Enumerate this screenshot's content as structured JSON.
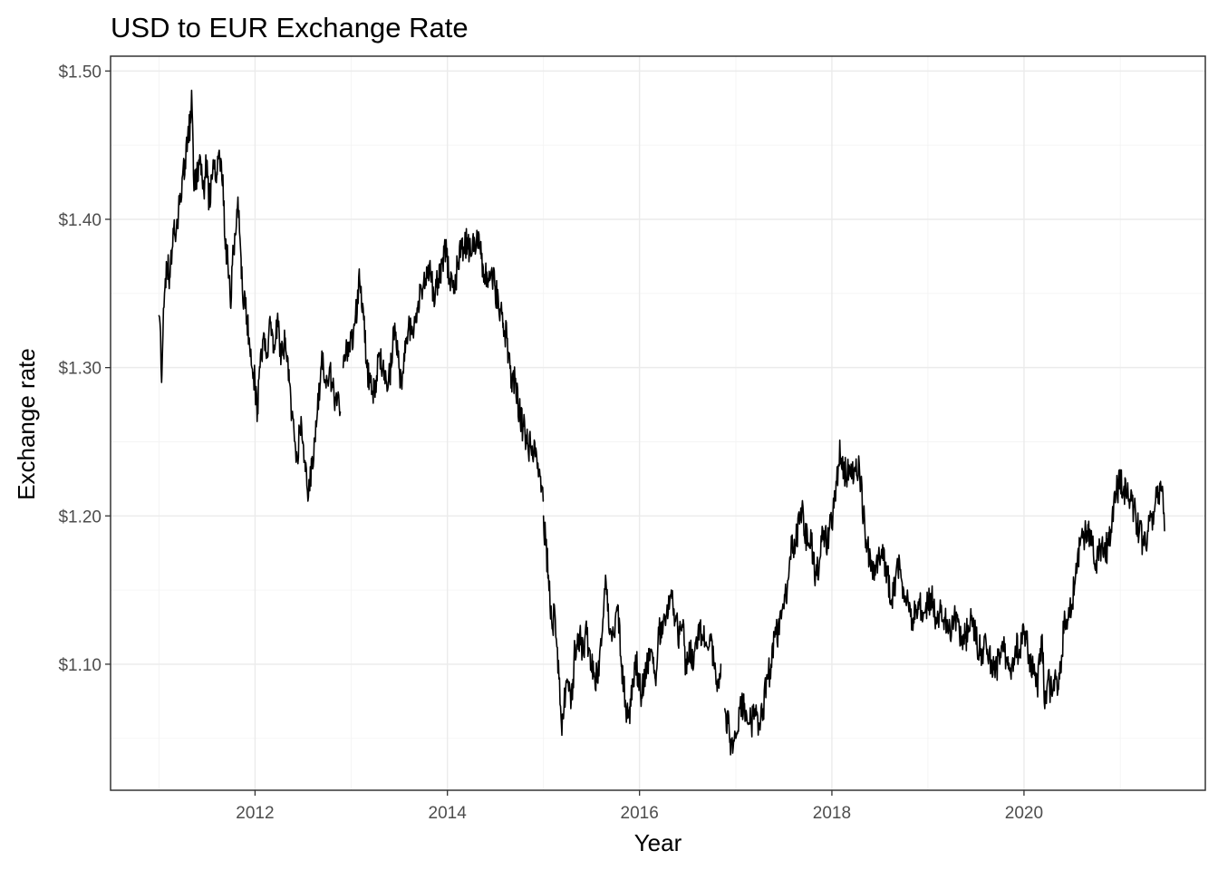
{
  "chart_data": {
    "type": "line",
    "title": "USD to EUR Exchange Rate",
    "xlabel": "Year",
    "ylabel": "Exchange rate",
    "xlim": [
      "2010-07-01",
      "2021-11-20"
    ],
    "ylim": [
      1.015,
      1.51
    ],
    "x_ticks": [
      {
        "value": "2012-01-01",
        "label": "2012"
      },
      {
        "value": "2014-01-01",
        "label": "2014"
      },
      {
        "value": "2016-01-01",
        "label": "2016"
      },
      {
        "value": "2018-01-01",
        "label": "2018"
      },
      {
        "value": "2020-01-01",
        "label": "2020"
      }
    ],
    "x_minor_ticks": [
      "2011-01-01",
      "2013-01-01",
      "2015-01-01",
      "2017-01-01",
      "2019-01-01",
      "2021-01-01"
    ],
    "y_ticks": [
      {
        "value": 1.1,
        "label": "$1.10"
      },
      {
        "value": 1.2,
        "label": "$1.20"
      },
      {
        "value": 1.3,
        "label": "$1.30"
      },
      {
        "value": 1.4,
        "label": "$1.40"
      },
      {
        "value": 1.5,
        "label": "$1.50"
      }
    ],
    "y_minor_ticks": [
      1.05,
      1.15,
      1.25,
      1.35,
      1.45
    ],
    "grid": true,
    "legend": "none",
    "series": [
      {
        "color": "#000000",
        "segments": [
          {
            "x": [
              "2011-01-01",
              "2011-01-05",
              "2011-01-09",
              "2011-01-12",
              "2011-01-18",
              "2011-01-25",
              "2011-02-01",
              "2011-02-10",
              "2011-02-20",
              "2011-03-01",
              "2011-03-10",
              "2011-03-20",
              "2011-04-01",
              "2011-04-10",
              "2011-04-20",
              "2011-05-01",
              "2011-05-05",
              "2011-05-12",
              "2011-05-20",
              "2011-06-01",
              "2011-06-10",
              "2011-06-20",
              "2011-07-01",
              "2011-07-10",
              "2011-07-20",
              "2011-08-01",
              "2011-08-10",
              "2011-08-20",
              "2011-09-01",
              "2011-09-10",
              "2011-09-20",
              "2011-10-01",
              "2011-10-10",
              "2011-10-20",
              "2011-10-28",
              "2011-11-10",
              "2011-11-25",
              "2011-12-10",
              "2011-12-20",
              "2012-01-01",
              "2012-01-10",
              "2012-01-20",
              "2012-02-01",
              "2012-02-15",
              "2012-02-28",
              "2012-03-10",
              "2012-03-25",
              "2012-04-10",
              "2012-04-25",
              "2012-05-10",
              "2012-05-20",
              "2012-06-01",
              "2012-06-10",
              "2012-06-20",
              "2012-07-01",
              "2012-07-10",
              "2012-07-20",
              "2012-07-25",
              "2012-08-05",
              "2012-08-15",
              "2012-08-25",
              "2012-09-05",
              "2012-09-15",
              "2012-09-25",
              "2012-10-10",
              "2012-10-20",
              "2012-11-01",
              "2012-11-10",
              "2012-11-20"
            ],
            "y": [
              1.335,
              1.33,
              1.3,
              1.295,
              1.34,
              1.36,
              1.37,
              1.36,
              1.38,
              1.39,
              1.4,
              1.41,
              1.43,
              1.44,
              1.455,
              1.465,
              1.487,
              1.43,
              1.42,
              1.44,
              1.43,
              1.42,
              1.44,
              1.41,
              1.43,
              1.44,
              1.43,
              1.44,
              1.43,
              1.38,
              1.37,
              1.34,
              1.38,
              1.39,
              1.415,
              1.36,
              1.34,
              1.32,
              1.3,
              1.29,
              1.27,
              1.3,
              1.32,
              1.31,
              1.33,
              1.31,
              1.33,
              1.31,
              1.32,
              1.29,
              1.27,
              1.25,
              1.24,
              1.26,
              1.25,
              1.23,
              1.21,
              1.22,
              1.24,
              1.25,
              1.27,
              1.29,
              1.31,
              1.29,
              1.3,
              1.29,
              1.28,
              1.28,
              1.27
            ]
          },
          {
            "x": [
              "2012-12-01",
              "2012-12-15",
              "2013-01-01",
              "2013-01-15",
              "2013-02-01",
              "2013-02-15",
              "2013-03-01",
              "2013-03-15",
              "2013-04-01",
              "2013-04-15",
              "2013-05-01",
              "2013-05-15",
              "2013-06-01",
              "2013-06-15",
              "2013-07-01",
              "2013-07-10",
              "2013-07-25",
              "2013-08-10",
              "2013-08-25",
              "2013-09-10",
              "2013-09-25",
              "2013-10-10",
              "2013-10-25",
              "2013-11-10",
              "2013-11-25",
              "2013-12-10",
              "2013-12-25",
              "2014-01-10",
              "2014-01-25",
              "2014-02-10",
              "2014-02-25",
              "2014-03-10",
              "2014-03-20",
              "2014-04-01",
              "2014-04-15",
              "2014-05-01",
              "2014-05-08",
              "2014-05-15",
              "2014-05-25",
              "2014-06-05",
              "2014-06-20",
              "2014-07-01",
              "2014-07-15",
              "2014-08-01",
              "2014-08-15",
              "2014-09-01",
              "2014-09-15",
              "2014-10-01",
              "2014-10-15",
              "2014-11-01",
              "2014-11-15",
              "2014-12-01",
              "2014-12-15",
              "2014-12-31"
            ],
            "y": [
              1.3,
              1.31,
              1.32,
              1.33,
              1.36,
              1.34,
              1.3,
              1.29,
              1.28,
              1.31,
              1.3,
              1.29,
              1.3,
              1.33,
              1.3,
              1.29,
              1.31,
              1.33,
              1.32,
              1.34,
              1.35,
              1.36,
              1.37,
              1.35,
              1.36,
              1.37,
              1.38,
              1.36,
              1.35,
              1.37,
              1.38,
              1.385,
              1.38,
              1.375,
              1.385,
              1.39,
              1.385,
              1.37,
              1.36,
              1.36,
              1.36,
              1.355,
              1.34,
              1.33,
              1.32,
              1.29,
              1.29,
              1.27,
              1.26,
              1.25,
              1.245,
              1.24,
              1.23,
              1.21
            ]
          },
          {
            "x": [
              "2015-01-01",
              "2015-01-10",
              "2015-01-20",
              "2015-02-01",
              "2015-02-15",
              "2015-03-01",
              "2015-03-10",
              "2015-03-20",
              "2015-04-01",
              "2015-04-15",
              "2015-05-01",
              "2015-05-15",
              "2015-06-01",
              "2015-06-15",
              "2015-07-01",
              "2015-07-15",
              "2015-08-01",
              "2015-08-15",
              "2015-08-25",
              "2015-09-10",
              "2015-09-25",
              "2015-10-10",
              "2015-10-25",
              "2015-11-10",
              "2015-11-25",
              "2015-12-05",
              "2015-12-20",
              "2016-01-05",
              "2016-01-20",
              "2016-02-01",
              "2016-02-15",
              "2016-03-01",
              "2016-03-15",
              "2016-04-01",
              "2016-04-15",
              "2016-05-01",
              "2016-05-15",
              "2016-06-01",
              "2016-06-15",
              "2016-06-24",
              "2016-07-10",
              "2016-07-25",
              "2016-08-10",
              "2016-08-25",
              "2016-09-10",
              "2016-09-25",
              "2016-10-10",
              "2016-10-25",
              "2016-11-05"
            ],
            "y": [
              1.2,
              1.18,
              1.16,
              1.13,
              1.13,
              1.09,
              1.06,
              1.07,
              1.09,
              1.07,
              1.11,
              1.12,
              1.11,
              1.12,
              1.1,
              1.09,
              1.1,
              1.13,
              1.16,
              1.12,
              1.12,
              1.14,
              1.1,
              1.07,
              1.06,
              1.09,
              1.1,
              1.08,
              1.09,
              1.1,
              1.11,
              1.09,
              1.12,
              1.13,
              1.14,
              1.15,
              1.13,
              1.12,
              1.13,
              1.1,
              1.11,
              1.1,
              1.12,
              1.12,
              1.115,
              1.12,
              1.1,
              1.09,
              1.1
            ]
          },
          {
            "x": [
              "2016-11-20",
              "2016-12-01",
              "2016-12-10",
              "2016-12-20",
              "2017-01-01",
              "2017-01-15",
              "2017-02-01",
              "2017-02-15",
              "2017-03-01",
              "2017-03-15",
              "2017-04-01",
              "2017-04-15",
              "2017-05-01",
              "2017-05-15",
              "2017-06-01",
              "2017-06-15",
              "2017-07-01",
              "2017-07-15",
              "2017-08-01",
              "2017-08-15",
              "2017-09-01",
              "2017-09-15",
              "2017-10-01",
              "2017-10-15",
              "2017-11-01",
              "2017-11-15",
              "2017-12-01",
              "2017-12-15",
              "2018-01-01",
              "2018-01-15",
              "2018-02-01",
              "2018-02-15",
              "2018-03-01",
              "2018-03-15",
              "2018-04-01",
              "2018-04-15",
              "2018-05-01",
              "2018-05-15",
              "2018-06-01",
              "2018-06-15",
              "2018-07-01",
              "2018-07-15",
              "2018-08-01",
              "2018-08-15",
              "2018-09-01",
              "2018-09-15",
              "2018-10-01",
              "2018-10-15",
              "2018-11-01",
              "2018-11-15",
              "2018-12-01",
              "2018-12-15",
              "2019-01-01",
              "2019-01-15",
              "2019-02-01",
              "2019-02-15",
              "2019-03-01",
              "2019-03-15",
              "2019-04-01",
              "2019-04-15",
              "2019-05-01",
              "2019-05-15",
              "2019-06-01",
              "2019-06-15",
              "2019-07-01",
              "2019-07-15",
              "2019-08-01",
              "2019-08-15",
              "2019-09-01",
              "2019-09-15",
              "2019-10-01",
              "2019-10-15",
              "2019-11-01",
              "2019-11-15",
              "2019-12-01",
              "2019-12-15",
              "2020-01-01",
              "2020-01-15",
              "2020-02-01",
              "2020-02-20",
              "2020-03-01",
              "2020-03-10",
              "2020-03-20",
              "2020-04-01",
              "2020-04-15",
              "2020-05-01",
              "2020-05-15",
              "2020-06-01",
              "2020-06-15",
              "2020-07-01",
              "2020-07-15",
              "2020-08-01",
              "2020-08-15",
              "2020-09-01",
              "2020-09-15",
              "2020-10-01",
              "2020-10-15",
              "2020-11-01",
              "2020-11-15",
              "2020-12-01",
              "2020-12-15",
              "2021-01-01",
              "2021-01-15",
              "2021-02-01",
              "2021-02-15",
              "2021-03-01",
              "2021-03-15",
              "2021-04-01",
              "2021-04-15",
              "2021-05-01",
              "2021-05-15",
              "2021-06-01",
              "2021-06-10",
              "2021-06-18"
            ],
            "y": [
              1.07,
              1.06,
              1.05,
              1.04,
              1.05,
              1.07,
              1.07,
              1.06,
              1.06,
              1.07,
              1.06,
              1.07,
              1.09,
              1.1,
              1.12,
              1.12,
              1.14,
              1.15,
              1.18,
              1.18,
              1.2,
              1.2,
              1.18,
              1.18,
              1.16,
              1.17,
              1.19,
              1.18,
              1.2,
              1.21,
              1.245,
              1.23,
              1.23,
              1.235,
              1.23,
              1.235,
              1.2,
              1.18,
              1.17,
              1.16,
              1.17,
              1.17,
              1.16,
              1.14,
              1.16,
              1.17,
              1.15,
              1.15,
              1.13,
              1.14,
              1.14,
              1.135,
              1.14,
              1.145,
              1.13,
              1.135,
              1.13,
              1.13,
              1.125,
              1.13,
              1.12,
              1.12,
              1.12,
              1.13,
              1.12,
              1.11,
              1.11,
              1.11,
              1.1,
              1.1,
              1.1,
              1.11,
              1.105,
              1.1,
              1.11,
              1.11,
              1.12,
              1.11,
              1.1,
              1.085,
              1.1,
              1.12,
              1.07,
              1.09,
              1.08,
              1.09,
              1.09,
              1.125,
              1.13,
              1.14,
              1.16,
              1.18,
              1.185,
              1.19,
              1.18,
              1.17,
              1.18,
              1.175,
              1.18,
              1.2,
              1.215,
              1.225,
              1.22,
              1.21,
              1.21,
              1.2,
              1.19,
              1.18,
              1.19,
              1.2,
              1.21,
              1.22,
              1.22,
              1.19
            ]
          }
        ]
      }
    ]
  }
}
